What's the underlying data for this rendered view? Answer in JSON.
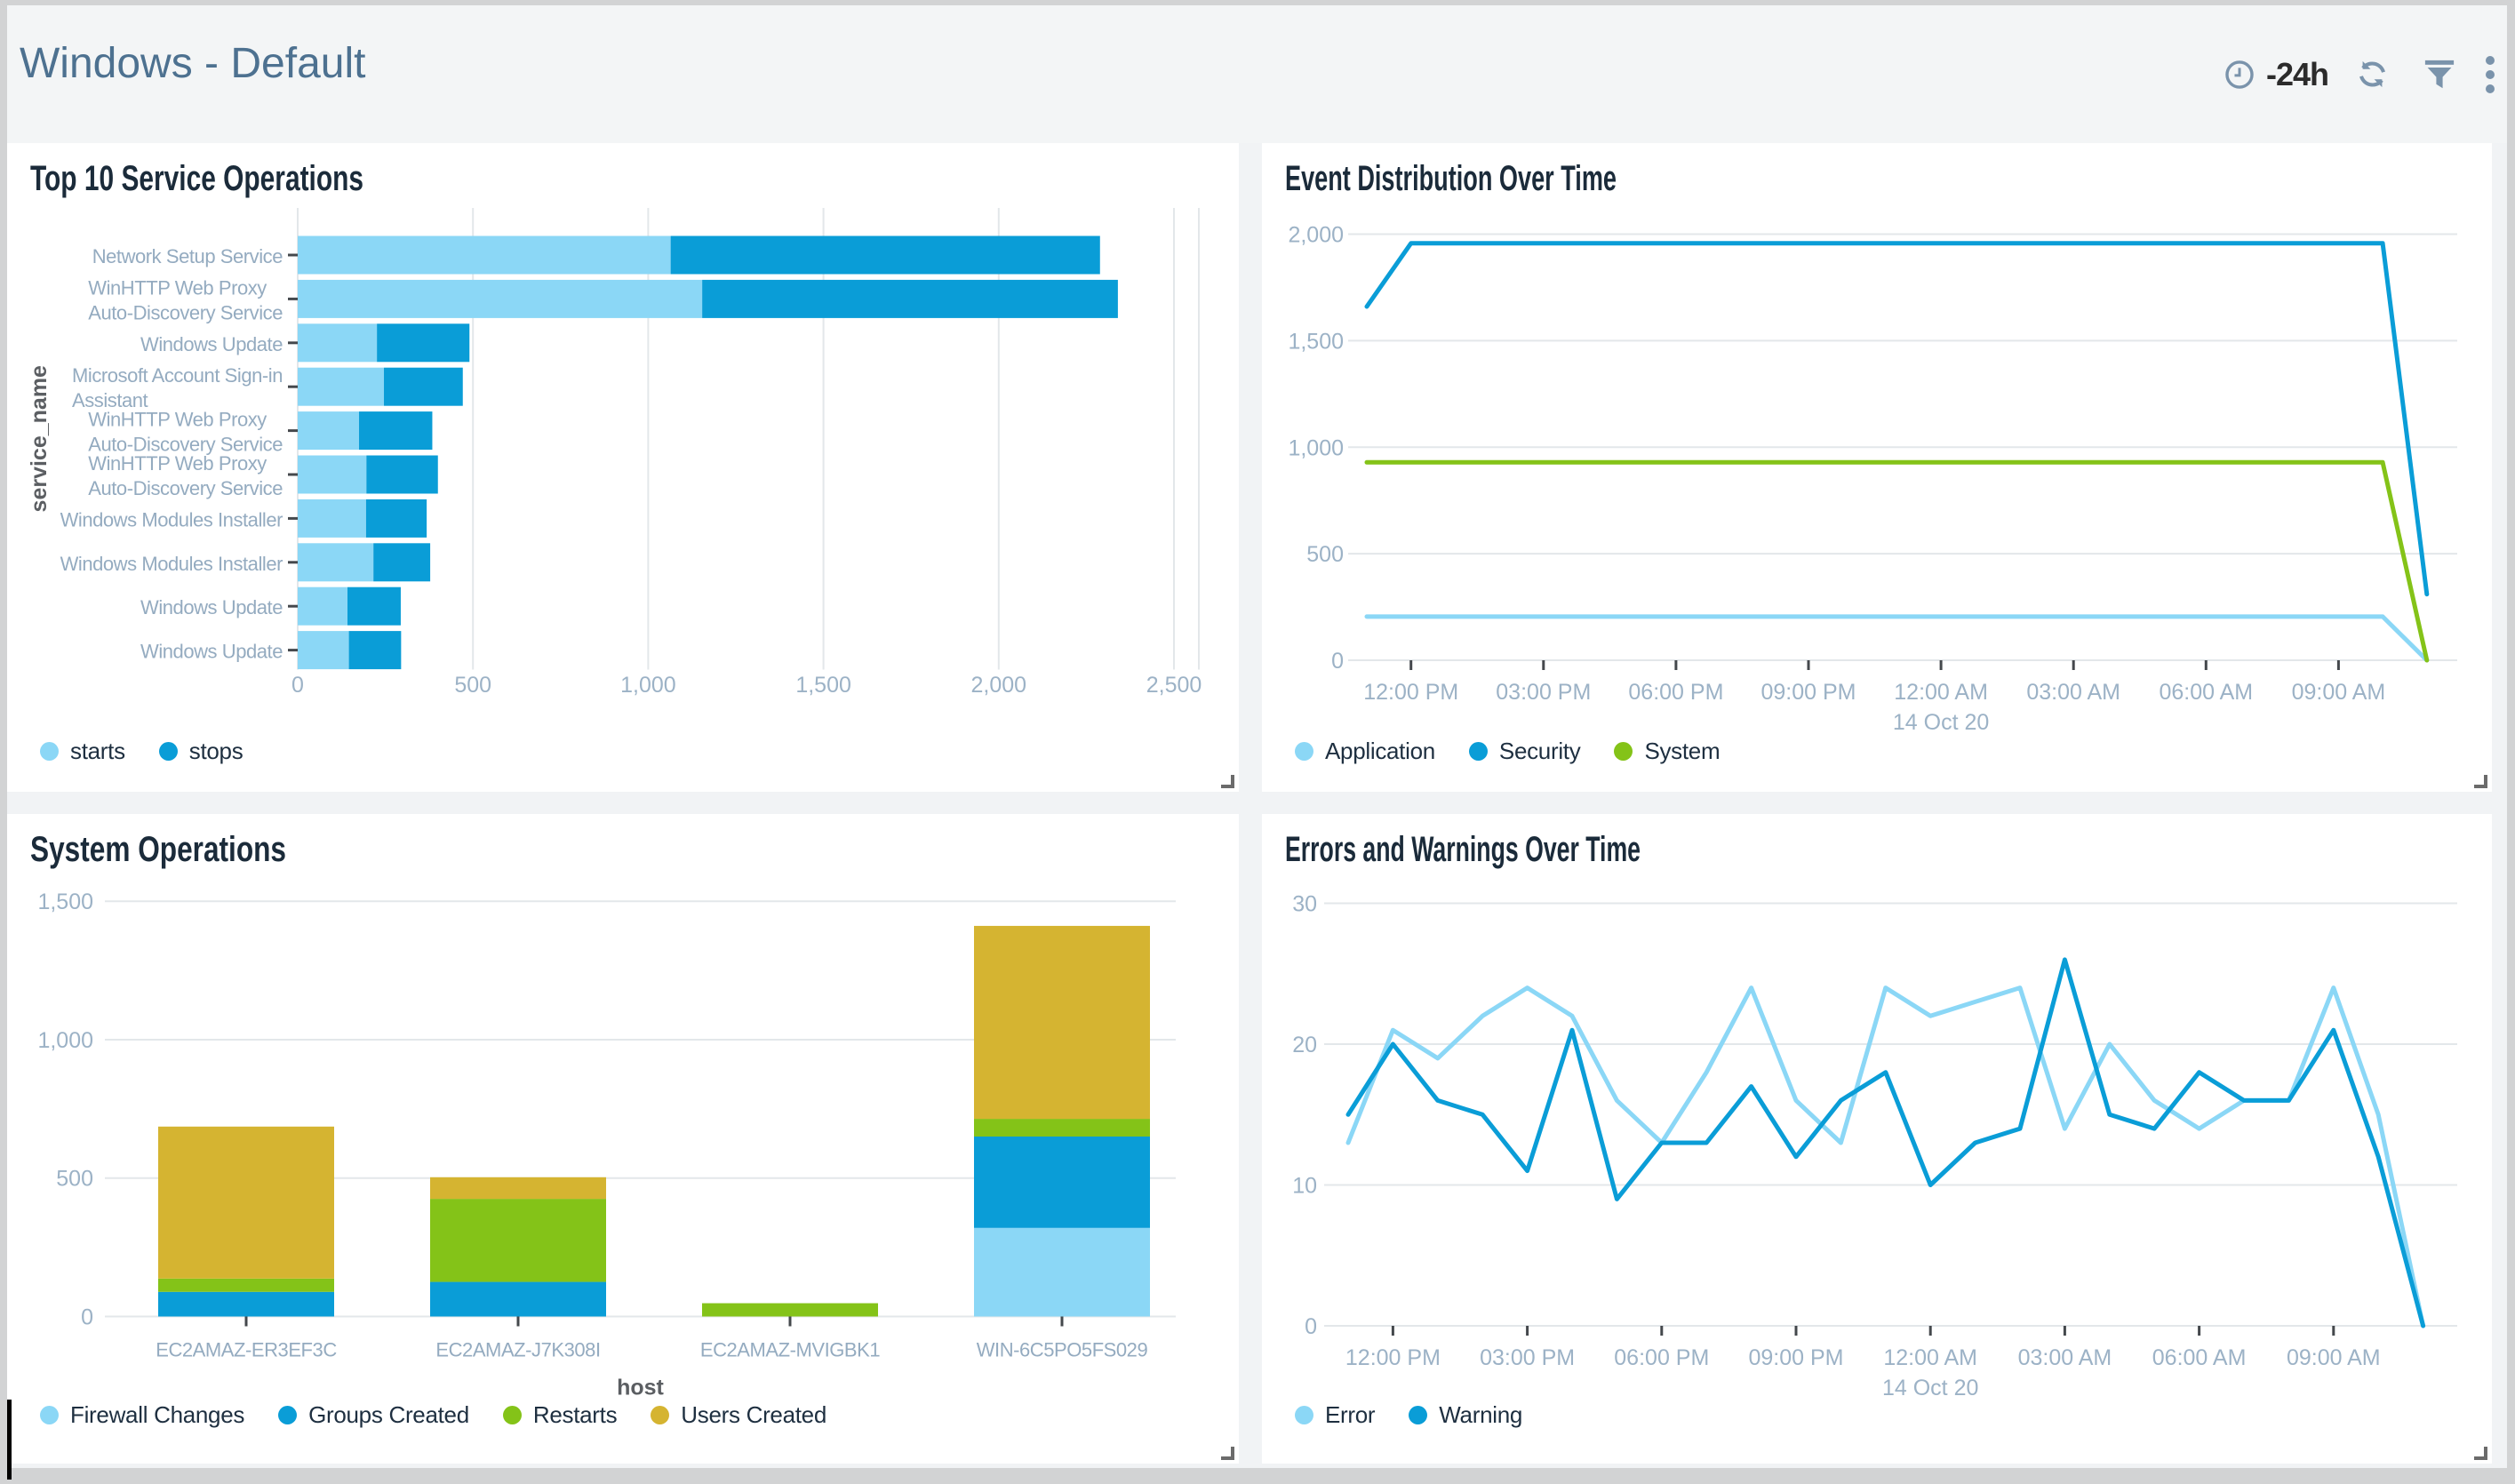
{
  "header": {
    "title": "Windows - Default",
    "time_range_label": "-24h",
    "icons": [
      "clock-icon",
      "refresh-icon",
      "filter-icon",
      "kebab-menu-icon"
    ]
  },
  "colors": {
    "light_blue": "#8bd7f6",
    "blue": "#0a9dd7",
    "green": "#84c318",
    "gold": "#d5b431",
    "header_title": "#4d7190",
    "panel_title": "#1b2b3a",
    "legend_text": "#1e2f40",
    "tick_text": "#9cb2c6",
    "gridline": "#e3e7ea"
  },
  "chart_data": [
    {
      "id": "top10",
      "type": "bar",
      "orientation": "horizontal",
      "title": "Top 10 Service Operations",
      "ylabel": "service_name",
      "xlim": [
        0,
        2500
      ],
      "x_ticks": [
        {
          "value": 0,
          "label": "0"
        },
        {
          "value": 500,
          "label": "500"
        },
        {
          "value": 1000,
          "label": "1,000"
        },
        {
          "value": 1500,
          "label": "1,500"
        },
        {
          "value": 2000,
          "label": "2,000"
        },
        {
          "value": 2500,
          "label": "2,500"
        }
      ],
      "grid": true,
      "legend_position": "bottom",
      "categories": [
        "Network Setup Service",
        "WinHTTP Web Proxy Auto-Discovery Service",
        "Windows Update",
        "Microsoft Account Sign-in Assistant",
        "WinHTTP Web Proxy Auto-Discovery Service",
        "WinHTTP Web Proxy Auto-Discovery Service",
        "Windows Modules Installer",
        "Windows Modules Installer",
        "Windows Update",
        "Windows Update"
      ],
      "category_lines": [
        [
          "Network Setup Service"
        ],
        [
          "WinHTTP Web Proxy",
          "Auto-Discovery Service"
        ],
        [
          "Windows Update"
        ],
        [
          "Microsoft Account Sign-in",
          "Assistant"
        ],
        [
          "WinHTTP Web Proxy",
          "Auto-Discovery Service"
        ],
        [
          "WinHTTP Web Proxy",
          "Auto-Discovery Service"
        ],
        [
          "Windows Modules Installer"
        ],
        [
          "Windows Modules Installer"
        ],
        [
          "Windows Update"
        ],
        [
          "Windows Update"
        ]
      ],
      "series": [
        {
          "name": "starts",
          "color_key": "light_blue",
          "values": [
            1064,
            1154,
            226,
            246,
            175,
            196,
            195,
            216,
            142,
            146
          ]
        },
        {
          "name": "stops",
          "color_key": "blue",
          "values": [
            1225,
            1186,
            264,
            225,
            209,
            204,
            173,
            162,
            152,
            149
          ]
        }
      ]
    },
    {
      "id": "events",
      "type": "line",
      "title": "Event Distribution Over Time",
      "ylim": [
        0,
        2000
      ],
      "y_ticks": [
        {
          "value": 0,
          "label": "0"
        },
        {
          "value": 500,
          "label": "500"
        },
        {
          "value": 1000,
          "label": "1,000"
        },
        {
          "value": 1500,
          "label": "1,500"
        },
        {
          "value": 2000,
          "label": "2,000"
        }
      ],
      "x_hours": 24,
      "x_tick_hours": [
        1,
        4,
        7,
        10,
        13,
        16,
        19,
        22
      ],
      "x_tick_labels": [
        "12:00 PM",
        "03:00 PM",
        "06:00 PM",
        "09:00 PM",
        "12:00 AM",
        "03:00 AM",
        "06:00 AM",
        "09:00 AM"
      ],
      "x_date_label": {
        "tick_index": 4,
        "text": "14 Oct 20"
      },
      "grid": true,
      "legend_position": "bottom",
      "series": [
        {
          "name": "Application",
          "color_key": "light_blue",
          "values": [
            205,
            205,
            205,
            205,
            205,
            205,
            205,
            205,
            205,
            205,
            205,
            205,
            205,
            205,
            205,
            205,
            205,
            205,
            205,
            205,
            205,
            205,
            205,
            205,
            0
          ]
        },
        {
          "name": "Security",
          "color_key": "blue",
          "values": [
            1660,
            1957,
            1957,
            1957,
            1957,
            1957,
            1957,
            1957,
            1957,
            1957,
            1957,
            1957,
            1957,
            1957,
            1957,
            1957,
            1957,
            1957,
            1957,
            1957,
            1957,
            1957,
            1957,
            1957,
            310
          ]
        },
        {
          "name": "System",
          "color_key": "green",
          "values": [
            929,
            929,
            929,
            929,
            929,
            929,
            929,
            929,
            929,
            929,
            929,
            929,
            929,
            929,
            929,
            929,
            929,
            929,
            929,
            929,
            929,
            929,
            929,
            929,
            0
          ]
        }
      ]
    },
    {
      "id": "sysops",
      "type": "bar",
      "orientation": "vertical",
      "title": "System Operations",
      "xlabel": "host",
      "ylim": [
        0,
        1500
      ],
      "y_ticks": [
        {
          "value": 0,
          "label": "0"
        },
        {
          "value": 500,
          "label": "500"
        },
        {
          "value": 1000,
          "label": "1,000"
        },
        {
          "value": 1500,
          "label": "1,500"
        }
      ],
      "grid": true,
      "legend_position": "bottom",
      "categories": [
        "EC2AMAZ-ER3EF3C",
        "EC2AMAZ-J7K308I",
        "EC2AMAZ-MVIGBK1",
        "WIN-6C5PO5FS029"
      ],
      "series": [
        {
          "name": "Firewall Changes",
          "color_key": "light_blue",
          "values": [
            0,
            0,
            0,
            320
          ]
        },
        {
          "name": "Groups Created",
          "color_key": "blue",
          "values": [
            89,
            125,
            0,
            330
          ]
        },
        {
          "name": "Restarts",
          "color_key": "green",
          "values": [
            48,
            300,
            48,
            64
          ]
        },
        {
          "name": "Users Created",
          "color_key": "gold",
          "values": [
            549,
            78,
            0,
            697
          ]
        }
      ]
    },
    {
      "id": "errors",
      "type": "line",
      "title": "Errors and Warnings Over Time",
      "ylim": [
        0,
        30
      ],
      "y_ticks": [
        {
          "value": 0,
          "label": "0"
        },
        {
          "value": 10,
          "label": "10"
        },
        {
          "value": 20,
          "label": "20"
        },
        {
          "value": 30,
          "label": "30"
        }
      ],
      "x_hours": 24,
      "x_tick_hours": [
        1,
        4,
        7,
        10,
        13,
        16,
        19,
        22
      ],
      "x_tick_labels": [
        "12:00 PM",
        "03:00 PM",
        "06:00 PM",
        "09:00 PM",
        "12:00 AM",
        "03:00 AM",
        "06:00 AM",
        "09:00 AM"
      ],
      "x_date_label": {
        "tick_index": 4,
        "text": "14 Oct 20"
      },
      "grid": true,
      "legend_position": "bottom",
      "series": [
        {
          "name": "Error",
          "color_key": "light_blue",
          "values": [
            13,
            21,
            19,
            22,
            24,
            22,
            16,
            13,
            18,
            24,
            16,
            13,
            24,
            22,
            23,
            24,
            14,
            20,
            16,
            14,
            16,
            16,
            24,
            15,
            0
          ]
        },
        {
          "name": "Warning",
          "color_key": "blue",
          "values": [
            15,
            20,
            16,
            15,
            11,
            21,
            9,
            13,
            13,
            17,
            12,
            16,
            18,
            10,
            13,
            14,
            26,
            15,
            14,
            18,
            16,
            16,
            21,
            12,
            0
          ]
        }
      ]
    }
  ]
}
